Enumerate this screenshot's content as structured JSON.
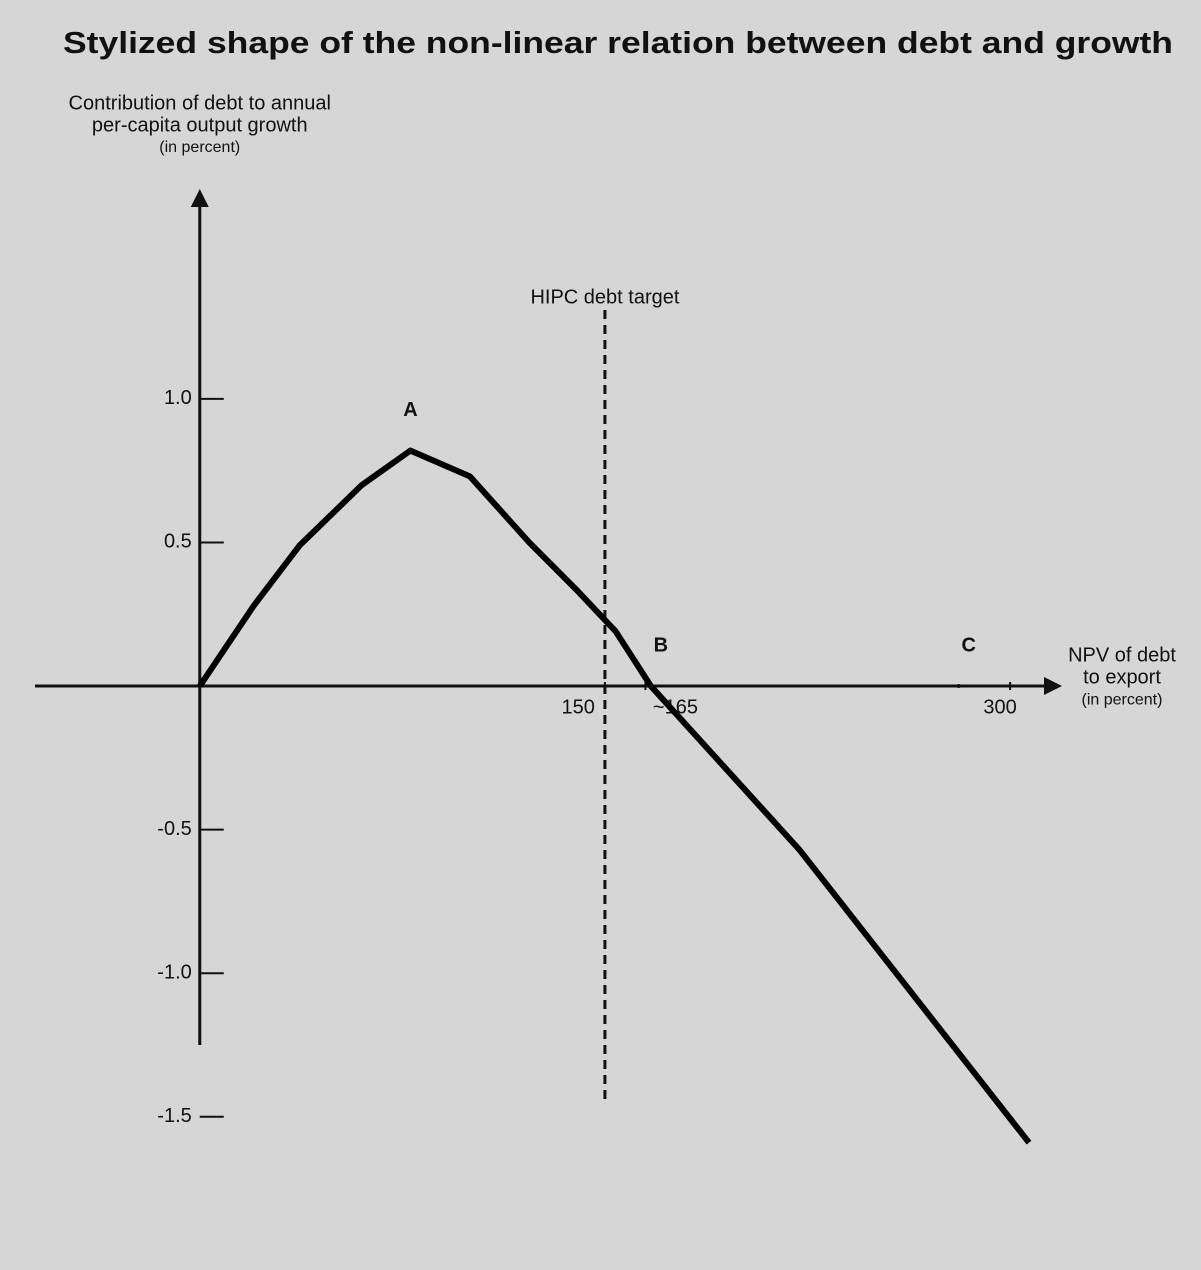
{
  "chart_data": {
    "type": "line",
    "title": "Stylized shape of the non-linear relation between debt and growth",
    "y_label": [
      "Contribution of debt to annual",
      "per-capita output growth",
      "(in percent)"
    ],
    "x_label": [
      "NPV of debt",
      "to export",
      "(in percent)"
    ],
    "x": [
      0,
      20,
      37,
      60,
      78,
      100,
      122,
      140,
      154,
      167,
      222,
      307
    ],
    "series": [
      {
        "color": "#000000",
        "values": [
          0,
          0.28,
          0.49,
          0.7,
          0.82,
          0.73,
          0.5,
          0.33,
          0.19,
          0,
          -0.57,
          -1.59
        ]
      }
    ],
    "xlim": [
      -61,
      317
    ],
    "ylim": [
      -1.25,
      1.71
    ],
    "xticks": [
      150,
      {
        "value": 165,
        "label": "~165"
      },
      300
    ],
    "yticks": [
      {
        "value": 1,
        "label": "1.0"
      },
      0.5,
      -0.5,
      {
        "value": -1,
        "label": "-1.0"
      },
      -1.5
    ],
    "vline": {
      "x": 150,
      "label": "HIPC debt target"
    },
    "points": [
      {
        "label": "A",
        "x": 78,
        "y": 0.82
      },
      {
        "label": "B",
        "x": 167,
        "y": 0
      },
      {
        "label": "C",
        "x": 281,
        "y": 0
      }
    ]
  }
}
